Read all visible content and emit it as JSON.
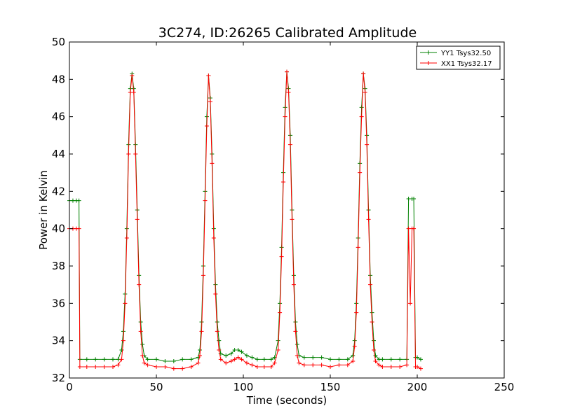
{
  "chart_data": {
    "type": "line",
    "title": "3C274, ID:26265 Calibrated Amplitude",
    "xlabel": "Time (seconds)",
    "ylabel": "Power in Kelvin",
    "xlim": [
      0,
      250
    ],
    "ylim": [
      32,
      50
    ],
    "xticks": [
      0,
      50,
      100,
      150,
      200,
      250
    ],
    "yticks": [
      32,
      34,
      36,
      38,
      40,
      42,
      44,
      46,
      48,
      50
    ],
    "grid": false,
    "legend_position": "top-right",
    "marker": "plus",
    "series": [
      {
        "name": "YY1 Tsys32.50",
        "color": "#008000",
        "points": [
          [
            0,
            41.5
          ],
          [
            2,
            41.5
          ],
          [
            4,
            41.5
          ],
          [
            5.5,
            41.5
          ],
          [
            6,
            33.0
          ],
          [
            10,
            33.0
          ],
          [
            15,
            33.0
          ],
          [
            20,
            33.0
          ],
          [
            25,
            33.0
          ],
          [
            28,
            33.0
          ],
          [
            30,
            33.5
          ],
          [
            31,
            34.5
          ],
          [
            32,
            36.5
          ],
          [
            33,
            40.0
          ],
          [
            34,
            44.5
          ],
          [
            35,
            47.5
          ],
          [
            36,
            48.3
          ],
          [
            37,
            47.5
          ],
          [
            38,
            44.5
          ],
          [
            39,
            41.0
          ],
          [
            40,
            37.5
          ],
          [
            41,
            35.0
          ],
          [
            42,
            33.8
          ],
          [
            43,
            33.2
          ],
          [
            45,
            33.0
          ],
          [
            50,
            33.0
          ],
          [
            55,
            32.9
          ],
          [
            60,
            32.9
          ],
          [
            65,
            33.0
          ],
          [
            70,
            33.0
          ],
          [
            74,
            33.1
          ],
          [
            75,
            33.5
          ],
          [
            76,
            35.0
          ],
          [
            77,
            38.0
          ],
          [
            78,
            42.0
          ],
          [
            79,
            46.0
          ],
          [
            80,
            48.2
          ],
          [
            81,
            47.0
          ],
          [
            82,
            44.0
          ],
          [
            83,
            40.0
          ],
          [
            84,
            37.0
          ],
          [
            85,
            35.0
          ],
          [
            86,
            34.0
          ],
          [
            87,
            33.3
          ],
          [
            90,
            33.2
          ],
          [
            93,
            33.3
          ],
          [
            95,
            33.5
          ],
          [
            97,
            33.5
          ],
          [
            99,
            33.4
          ],
          [
            102,
            33.2
          ],
          [
            105,
            33.1
          ],
          [
            108,
            33.0
          ],
          [
            112,
            33.0
          ],
          [
            116,
            33.0
          ],
          [
            118,
            33.1
          ],
          [
            120,
            34.0
          ],
          [
            121,
            36.0
          ],
          [
            122,
            39.0
          ],
          [
            123,
            43.0
          ],
          [
            124,
            46.5
          ],
          [
            125,
            48.4
          ],
          [
            126,
            47.5
          ],
          [
            127,
            45.0
          ],
          [
            128,
            41.0
          ],
          [
            129,
            37.5
          ],
          [
            130,
            35.0
          ],
          [
            131,
            33.8
          ],
          [
            132,
            33.2
          ],
          [
            135,
            33.1
          ],
          [
            140,
            33.1
          ],
          [
            145,
            33.1
          ],
          [
            150,
            33.0
          ],
          [
            155,
            33.0
          ],
          [
            160,
            33.0
          ],
          [
            163,
            33.2
          ],
          [
            164,
            34.0
          ],
          [
            165,
            36.0
          ],
          [
            166,
            39.5
          ],
          [
            167,
            43.5
          ],
          [
            168,
            46.5
          ],
          [
            169,
            48.3
          ],
          [
            170,
            47.5
          ],
          [
            171,
            45.0
          ],
          [
            172,
            41.0
          ],
          [
            173,
            37.5
          ],
          [
            174,
            35.5
          ],
          [
            175,
            34.0
          ],
          [
            176,
            33.2
          ],
          [
            178,
            33.0
          ],
          [
            180,
            33.0
          ],
          [
            185,
            33.0
          ],
          [
            190,
            33.0
          ],
          [
            194,
            33.0
          ],
          [
            195,
            41.6
          ],
          [
            197,
            41.6
          ],
          [
            198,
            41.6
          ],
          [
            199,
            33.1
          ],
          [
            200,
            33.1
          ],
          [
            202,
            33.0
          ]
        ]
      },
      {
        "name": "XX1 Tsys32.17",
        "color": "#ff0000",
        "points": [
          [
            0,
            40.0
          ],
          [
            2,
            40.0
          ],
          [
            4,
            40.0
          ],
          [
            5.5,
            40.0
          ],
          [
            6,
            32.6
          ],
          [
            10,
            32.6
          ],
          [
            15,
            32.6
          ],
          [
            20,
            32.6
          ],
          [
            25,
            32.6
          ],
          [
            28,
            32.7
          ],
          [
            30,
            33.0
          ],
          [
            31,
            34.0
          ],
          [
            32,
            36.0
          ],
          [
            33,
            39.5
          ],
          [
            34,
            44.0
          ],
          [
            35,
            47.3
          ],
          [
            36,
            48.2
          ],
          [
            37,
            47.3
          ],
          [
            38,
            44.0
          ],
          [
            39,
            40.5
          ],
          [
            40,
            37.0
          ],
          [
            41,
            34.5
          ],
          [
            42,
            33.2
          ],
          [
            43,
            32.8
          ],
          [
            45,
            32.7
          ],
          [
            50,
            32.6
          ],
          [
            55,
            32.6
          ],
          [
            60,
            32.5
          ],
          [
            65,
            32.5
          ],
          [
            70,
            32.6
          ],
          [
            74,
            32.8
          ],
          [
            75,
            33.2
          ],
          [
            76,
            34.5
          ],
          [
            77,
            37.5
          ],
          [
            78,
            41.5
          ],
          [
            79,
            45.5
          ],
          [
            80,
            48.2
          ],
          [
            81,
            46.8
          ],
          [
            82,
            43.5
          ],
          [
            83,
            39.5
          ],
          [
            84,
            36.5
          ],
          [
            85,
            34.5
          ],
          [
            86,
            33.5
          ],
          [
            87,
            33.0
          ],
          [
            90,
            32.8
          ],
          [
            93,
            32.9
          ],
          [
            95,
            33.0
          ],
          [
            97,
            33.1
          ],
          [
            99,
            33.0
          ],
          [
            102,
            32.8
          ],
          [
            105,
            32.7
          ],
          [
            108,
            32.6
          ],
          [
            112,
            32.6
          ],
          [
            116,
            32.6
          ],
          [
            118,
            32.8
          ],
          [
            120,
            33.5
          ],
          [
            121,
            35.5
          ],
          [
            122,
            38.5
          ],
          [
            123,
            42.5
          ],
          [
            124,
            46.0
          ],
          [
            125,
            48.4
          ],
          [
            126,
            47.3
          ],
          [
            127,
            44.5
          ],
          [
            128,
            40.5
          ],
          [
            129,
            37.0
          ],
          [
            130,
            34.5
          ],
          [
            131,
            33.2
          ],
          [
            132,
            32.8
          ],
          [
            135,
            32.7
          ],
          [
            140,
            32.7
          ],
          [
            145,
            32.7
          ],
          [
            150,
            32.6
          ],
          [
            155,
            32.7
          ],
          [
            160,
            32.7
          ],
          [
            163,
            32.9
          ],
          [
            164,
            33.7
          ],
          [
            165,
            35.5
          ],
          [
            166,
            39.0
          ],
          [
            167,
            43.0
          ],
          [
            168,
            46.0
          ],
          [
            169,
            48.3
          ],
          [
            170,
            47.3
          ],
          [
            171,
            44.5
          ],
          [
            172,
            40.5
          ],
          [
            173,
            37.0
          ],
          [
            174,
            35.0
          ],
          [
            175,
            33.5
          ],
          [
            176,
            32.9
          ],
          [
            178,
            32.7
          ],
          [
            180,
            32.6
          ],
          [
            185,
            32.6
          ],
          [
            190,
            32.6
          ],
          [
            194,
            32.7
          ],
          [
            195,
            40.0
          ],
          [
            196,
            36.0
          ],
          [
            197,
            40.0
          ],
          [
            198,
            40.0
          ],
          [
            199,
            32.6
          ],
          [
            200,
            32.6
          ],
          [
            202,
            32.5
          ]
        ]
      }
    ]
  }
}
